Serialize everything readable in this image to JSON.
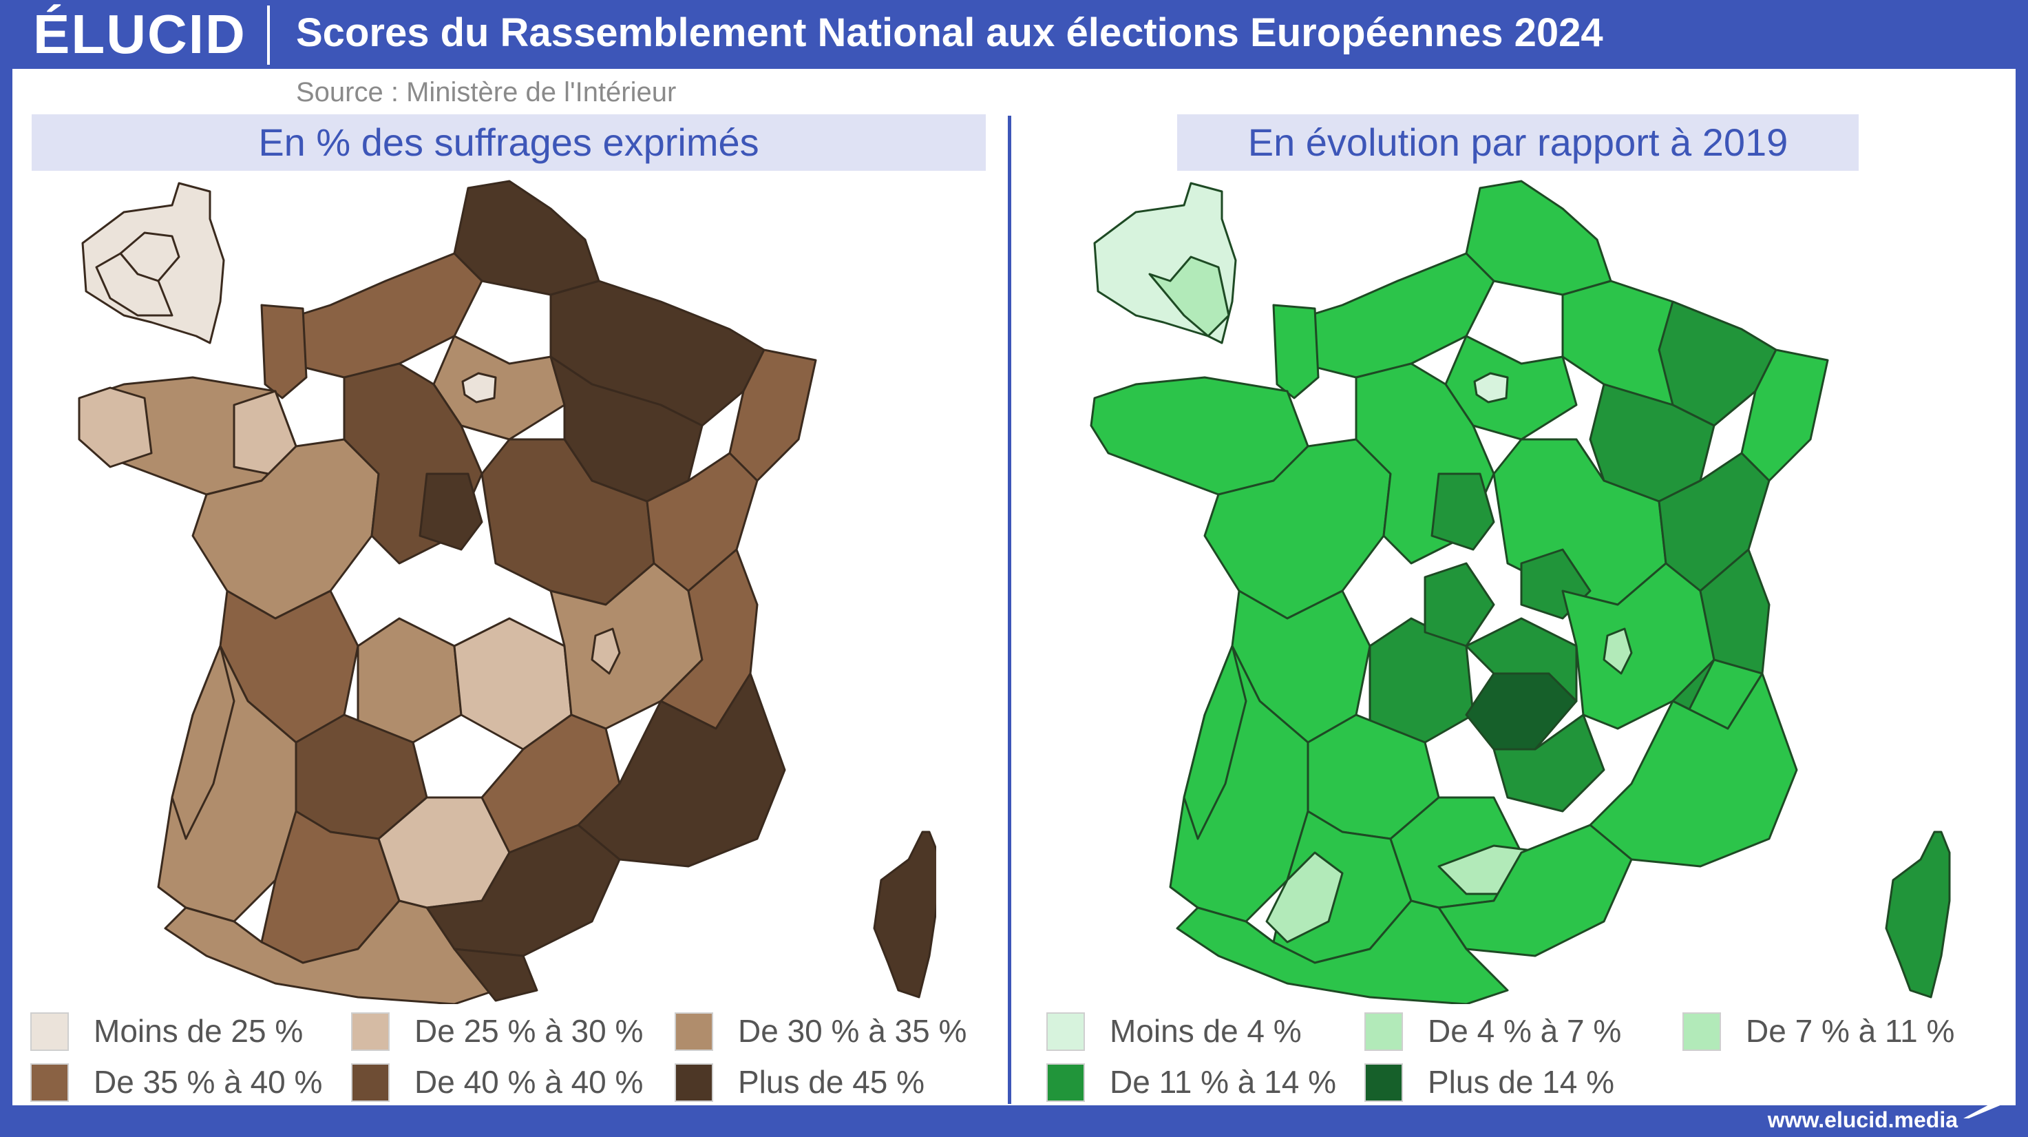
{
  "header": {
    "logo": "ÉLUCID",
    "title": "Scores du Rassemblement National aux élections Européennes 2024",
    "source": "Source : Ministère de l'Intérieur"
  },
  "left_panel": {
    "subtitle": "En % des suffrages exprimés",
    "legend": [
      {
        "label": "Moins de 25 %",
        "color": "#ebe3da"
      },
      {
        "label": "De 25 % à 30 %",
        "color": "#d5bba4"
      },
      {
        "label": "De 30 % à 35 %",
        "color": "#b08d6c"
      },
      {
        "label": "De 35 % à 40 %",
        "color": "#8a6244"
      },
      {
        "label": "De 40 % à 40 %",
        "color": "#6e4d34"
      },
      {
        "label": "Plus de 45 %",
        "color": "#4d3726"
      }
    ]
  },
  "right_panel": {
    "subtitle": "En évolution par rapport à 2019",
    "legend": [
      {
        "label": "Moins de 4 %",
        "color": "#d7f3dd"
      },
      {
        "label": "De 4 % à 7 %",
        "color": "#b2eab9"
      },
      {
        "label": "De 7 % à 11 %",
        "color": "#2cc44a"
      },
      {
        "label": "De 11 % à 14 %",
        "color": "#21953a"
      },
      {
        "label": "Plus de 14 %",
        "color": "#16602a"
      }
    ]
  },
  "footer": {
    "url": "www.elucid.media"
  }
}
